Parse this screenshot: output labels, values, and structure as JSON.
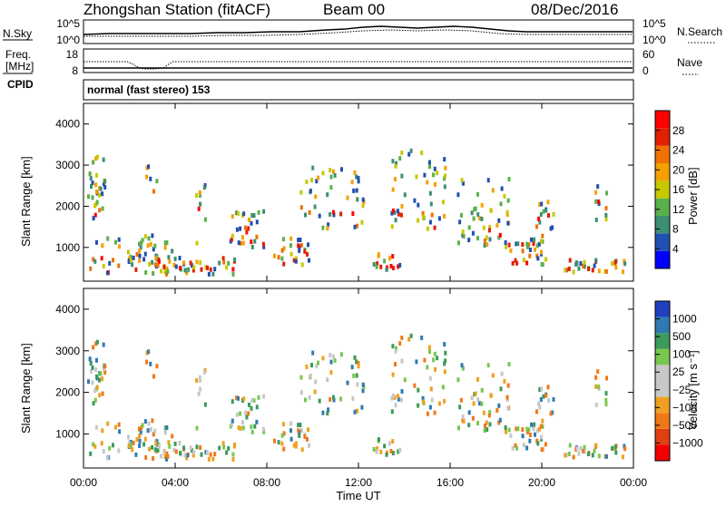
{
  "header": {
    "station": "Zhongshan Station (fitACF)",
    "beam": "Beam 00",
    "date": "08/Dec/2016"
  },
  "summary_panel": {
    "nsky_label": "N.Sky",
    "nsearch_label": "N.Search",
    "noise_ticks": [
      "10^5",
      "10^0"
    ],
    "noise_ticks_right": [
      "10^5",
      "10^0"
    ],
    "freq_label_1": "Freq.",
    "freq_label_2": "[MHz]",
    "freq_ticks": [
      "18",
      "8"
    ],
    "nave_label": "Nave",
    "nave_ticks": [
      "60",
      "0"
    ],
    "cpid_label": "CPID",
    "cpid_text": "normal (fast stereo) 153"
  },
  "colors": {
    "power_scale": [
      "#0000ff",
      "#2050b0",
      "#3c8f70",
      "#5ab04a",
      "#c8c800",
      "#f5a000",
      "#f07000",
      "#e02000",
      "#ff0000"
    ],
    "velocity_scale": [
      "#2040c0",
      "#2f7ab0",
      "#3c9a5a",
      "#78c850",
      "#c8c8c8",
      "#c8c8c8",
      "#f0a020",
      "#f07818",
      "#e04010",
      "#f00000"
    ]
  },
  "chart_data": [
    {
      "type": "heatmap",
      "name": "power",
      "ylabel": "Slant Range [km]",
      "xlabel": "Time UT",
      "x_ticks": [
        "00:00",
        "04:00",
        "08:00",
        "12:00",
        "16:00",
        "20:00",
        "00:00"
      ],
      "y_ticks": [
        "1000",
        "2000",
        "3000",
        "4000"
      ],
      "ylim": [
        180,
        4500
      ],
      "colorbar_label": "Power [dB]",
      "colorbar_ticks": [
        "4",
        "8",
        "12",
        "16",
        "20",
        "24",
        "28"
      ],
      "colorbar_range": [
        0,
        30
      ]
    },
    {
      "type": "heatmap",
      "name": "velocity",
      "ylabel": "Slant Range [km]",
      "xlabel": "Time UT",
      "x_ticks": [
        "00:00",
        "04:00",
        "08:00",
        "12:00",
        "16:00",
        "20:00",
        "00:00"
      ],
      "y_ticks": [
        "1000",
        "2000",
        "3000",
        "4000"
      ],
      "ylim": [
        180,
        4500
      ],
      "colorbar_label": "Velocity [m s⁻¹]",
      "colorbar_ticks": [
        "1000",
        "500",
        "100",
        "25",
        "−25",
        "−100",
        "−500",
        "−1000"
      ]
    }
  ]
}
